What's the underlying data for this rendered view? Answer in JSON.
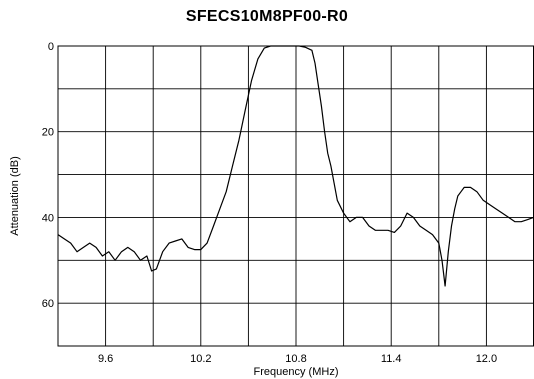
{
  "chart_data": {
    "type": "line",
    "title": "SFECS10M8PF00-R0",
    "xlabel": "Frequency (MHz)",
    "ylabel": "Attenuation (dB)",
    "xlim": [
      9.3,
      12.3
    ],
    "ylim": [
      0,
      70
    ],
    "y_inverted": true,
    "grid": true,
    "x_ticks": [
      9.6,
      10.2,
      10.8,
      11.4,
      12.0
    ],
    "x_tick_labels": [
      "9.6",
      "10.2",
      "10.8",
      "11.4",
      "12.0"
    ],
    "y_ticks": [
      0,
      20,
      40,
      60
    ],
    "y_tick_labels": [
      "0",
      "20",
      "40",
      "60"
    ],
    "series": [
      {
        "color": "#000000",
        "x": [
          9.3,
          9.34,
          9.38,
          9.42,
          9.46,
          9.5,
          9.54,
          9.58,
          9.62,
          9.66,
          9.7,
          9.74,
          9.78,
          9.82,
          9.86,
          9.89,
          9.92,
          9.96,
          10.0,
          10.04,
          10.08,
          10.12,
          10.16,
          10.2,
          10.24,
          10.28,
          10.32,
          10.36,
          10.4,
          10.44,
          10.48,
          10.52,
          10.56,
          10.6,
          10.64,
          10.66,
          10.68,
          10.7,
          10.72,
          10.74,
          10.76,
          10.78,
          10.82,
          10.86,
          10.9,
          10.92,
          10.94,
          10.96,
          10.98,
          11.0,
          11.02,
          11.04,
          11.06,
          11.1,
          11.14,
          11.18,
          11.22,
          11.26,
          11.3,
          11.34,
          11.38,
          11.42,
          11.46,
          11.5,
          11.54,
          11.58,
          11.62,
          11.66,
          11.7,
          11.72,
          11.74,
          11.76,
          11.78,
          11.8,
          11.82,
          11.84,
          11.86,
          11.9,
          11.94,
          11.98,
          12.02,
          12.06,
          12.1,
          12.14,
          12.18,
          12.22,
          12.26,
          12.3
        ],
        "y": [
          44,
          45,
          46,
          48,
          47,
          46,
          47,
          49,
          48,
          50,
          48,
          47,
          48,
          50,
          49,
          52.5,
          52,
          48,
          46,
          45.5,
          45,
          47,
          47.5,
          47.5,
          46,
          42,
          38,
          34,
          28,
          22,
          15,
          8,
          3,
          0.5,
          0,
          0,
          0,
          0,
          0,
          0,
          0,
          0,
          0,
          0.3,
          1,
          4,
          9,
          14,
          20,
          25,
          28,
          32,
          36,
          39,
          41,
          40,
          40,
          42,
          43,
          43,
          43,
          43.5,
          42,
          39,
          40,
          42,
          43,
          44,
          46,
          50,
          56,
          48,
          42,
          38,
          35,
          34,
          33,
          33,
          34,
          36,
          37,
          38,
          39,
          40,
          41,
          41,
          40.5,
          40
        ]
      }
    ]
  }
}
